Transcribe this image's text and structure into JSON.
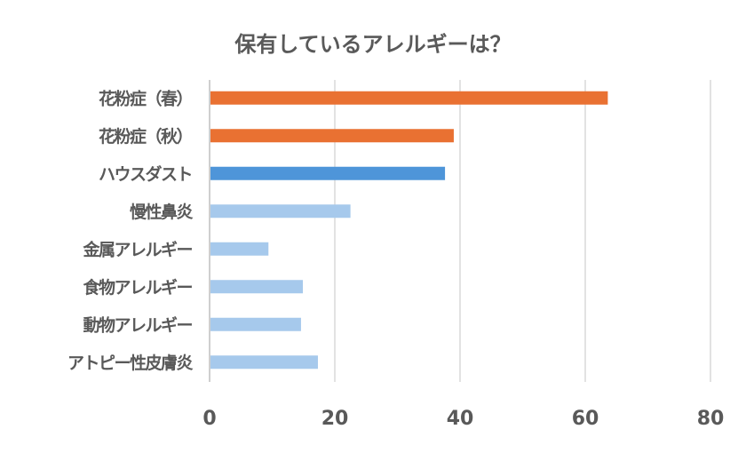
{
  "chart_data": {
    "type": "bar",
    "orientation": "horizontal",
    "title": "保有しているアレルギーは？",
    "categories": [
      "花粉症（春）",
      "花粉症（秋）",
      "ハウスダスト",
      "慢性鼻炎",
      "金属アレルギー",
      "食物アレルギー",
      "動物アレルギー",
      "アトピー性皮膚炎"
    ],
    "values": [
      63.6,
      39.0,
      37.6,
      22.5,
      9.4,
      14.9,
      14.6,
      17.3
    ],
    "colors": [
      "#E97132",
      "#E97132",
      "#4E95D9",
      "#A6C9EC",
      "#A6C9EC",
      "#A6C9EC",
      "#A6C9EC",
      "#A6C9EC"
    ],
    "xlim": [
      0,
      80
    ],
    "xticks": [
      "0",
      "20",
      "40",
      "60",
      "80"
    ],
    "xlabel": "",
    "ylabel": "",
    "grid": true,
    "legend": "none"
  }
}
